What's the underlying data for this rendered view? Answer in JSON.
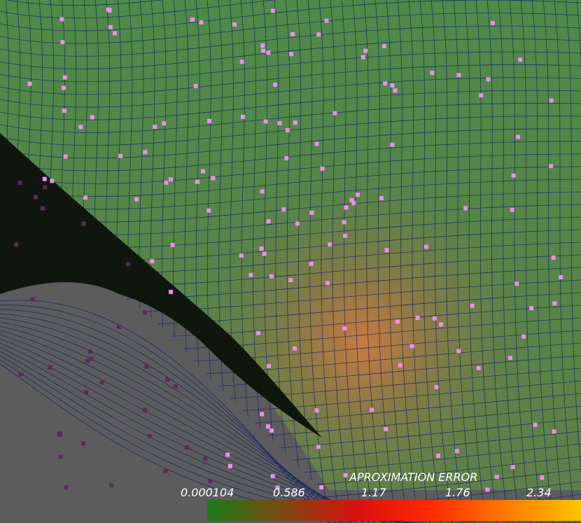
{
  "legend": {
    "title": "APROXIMATION ERROR",
    "ticks": [
      "0.000104",
      "0.586",
      "1.17",
      "1.76",
      "2.34"
    ],
    "gradient_colors": [
      "#1a7a1a",
      "#7a4a10",
      "#d81010",
      "#ff2a00",
      "#ff7a00",
      "#ffc400"
    ]
  },
  "scene": {
    "surface_color": "#5a8a4a",
    "hot_spot_color": "#c87a40",
    "mesh_line_color": "#0a1a6a",
    "shadow_color": "#0e160e",
    "ground_color": "#5c5c5c",
    "sample_point_color": "#f08cf0"
  }
}
